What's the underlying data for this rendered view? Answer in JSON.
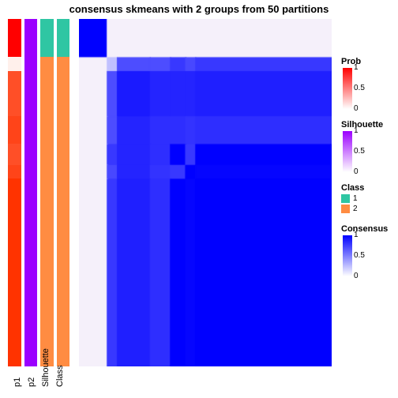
{
  "title": "consensus skmeans with 2 groups from 50 partitions",
  "plot": {
    "cols": [
      "p1",
      "p2",
      "Silhouette",
      "Class"
    ],
    "row_heights": [
      0.11,
      0.04,
      0.13,
      0.08,
      0.06,
      0.04,
      0.54
    ],
    "heatmap_size": 320,
    "annotation_columns": {
      "p1": {
        "colors": [
          "#ff0000",
          "#fff0eb",
          "#ff4f27",
          "#ff4419",
          "#ff4f27",
          "#ff4419",
          "#ff3300"
        ],
        "label": "p1"
      },
      "p2": {
        "colors": [
          "#9b00ff",
          "#9b00ff",
          "#9b00ff",
          "#9b00ff",
          "#9b00ff",
          "#9b00ff",
          "#9b00ff"
        ],
        "label": "p2"
      },
      "silhouette": {
        "colors": [
          "#2fc6a3",
          "#ff8c42",
          "#ff8c42",
          "#ff8c42",
          "#ff8c42",
          "#ff8c42",
          "#ff8c42"
        ],
        "label": "Silhouette"
      },
      "class": {
        "colors": [
          "#2fc6a3",
          "#ff8c42",
          "#ff8c42",
          "#ff8c42",
          "#ff8c42",
          "#ff8c42",
          "#ff8c42"
        ],
        "label": "Class"
      }
    },
    "consensus_matrix": [
      [
        1.0,
        0.01,
        0.02,
        0.02,
        0.02,
        0.02,
        0.0
      ],
      [
        0.01,
        0.25,
        0.7,
        0.7,
        0.78,
        0.72,
        0.78
      ],
      [
        0.02,
        0.7,
        0.9,
        0.86,
        0.86,
        0.86,
        0.88
      ],
      [
        0.02,
        0.7,
        0.86,
        0.82,
        0.82,
        0.8,
        0.82
      ],
      [
        0.02,
        0.78,
        0.86,
        0.82,
        1.0,
        0.78,
        1.0
      ],
      [
        0.02,
        0.72,
        0.86,
        0.8,
        0.78,
        1.0,
        0.98
      ],
      [
        0.0,
        0.78,
        0.88,
        0.82,
        1.0,
        0.98,
        1.0
      ]
    ],
    "consensus_colors": {
      "low": "#ffffff",
      "mid": "#8080ff",
      "high": "#0000ff",
      "tint": "#f5f0fa"
    }
  },
  "legends": {
    "prob": {
      "title": "Prob",
      "gradient": [
        "#ffffff",
        "#ff0000"
      ],
      "ticks": [
        {
          "v": "1",
          "p": 0
        },
        {
          "v": "0.5",
          "p": 0.5
        },
        {
          "v": "0",
          "p": 1
        }
      ]
    },
    "silhouette": {
      "title": "Silhouette",
      "gradient": [
        "#ffffff",
        "#9b00ff"
      ],
      "ticks": [
        {
          "v": "1",
          "p": 0
        },
        {
          "v": "0.5",
          "p": 0.5
        },
        {
          "v": "0",
          "p": 1
        }
      ]
    },
    "class": {
      "title": "Class",
      "items": [
        {
          "label": "1",
          "color": "#2fc6a3"
        },
        {
          "label": "2",
          "color": "#ff8c42"
        }
      ]
    },
    "consensus": {
      "title": "Consensus",
      "gradient": [
        "#ffffff",
        "#0000ff"
      ],
      "ticks": [
        {
          "v": "1",
          "p": 0
        },
        {
          "v": "0.5",
          "p": 0.5
        },
        {
          "v": "0",
          "p": 1
        }
      ]
    }
  }
}
